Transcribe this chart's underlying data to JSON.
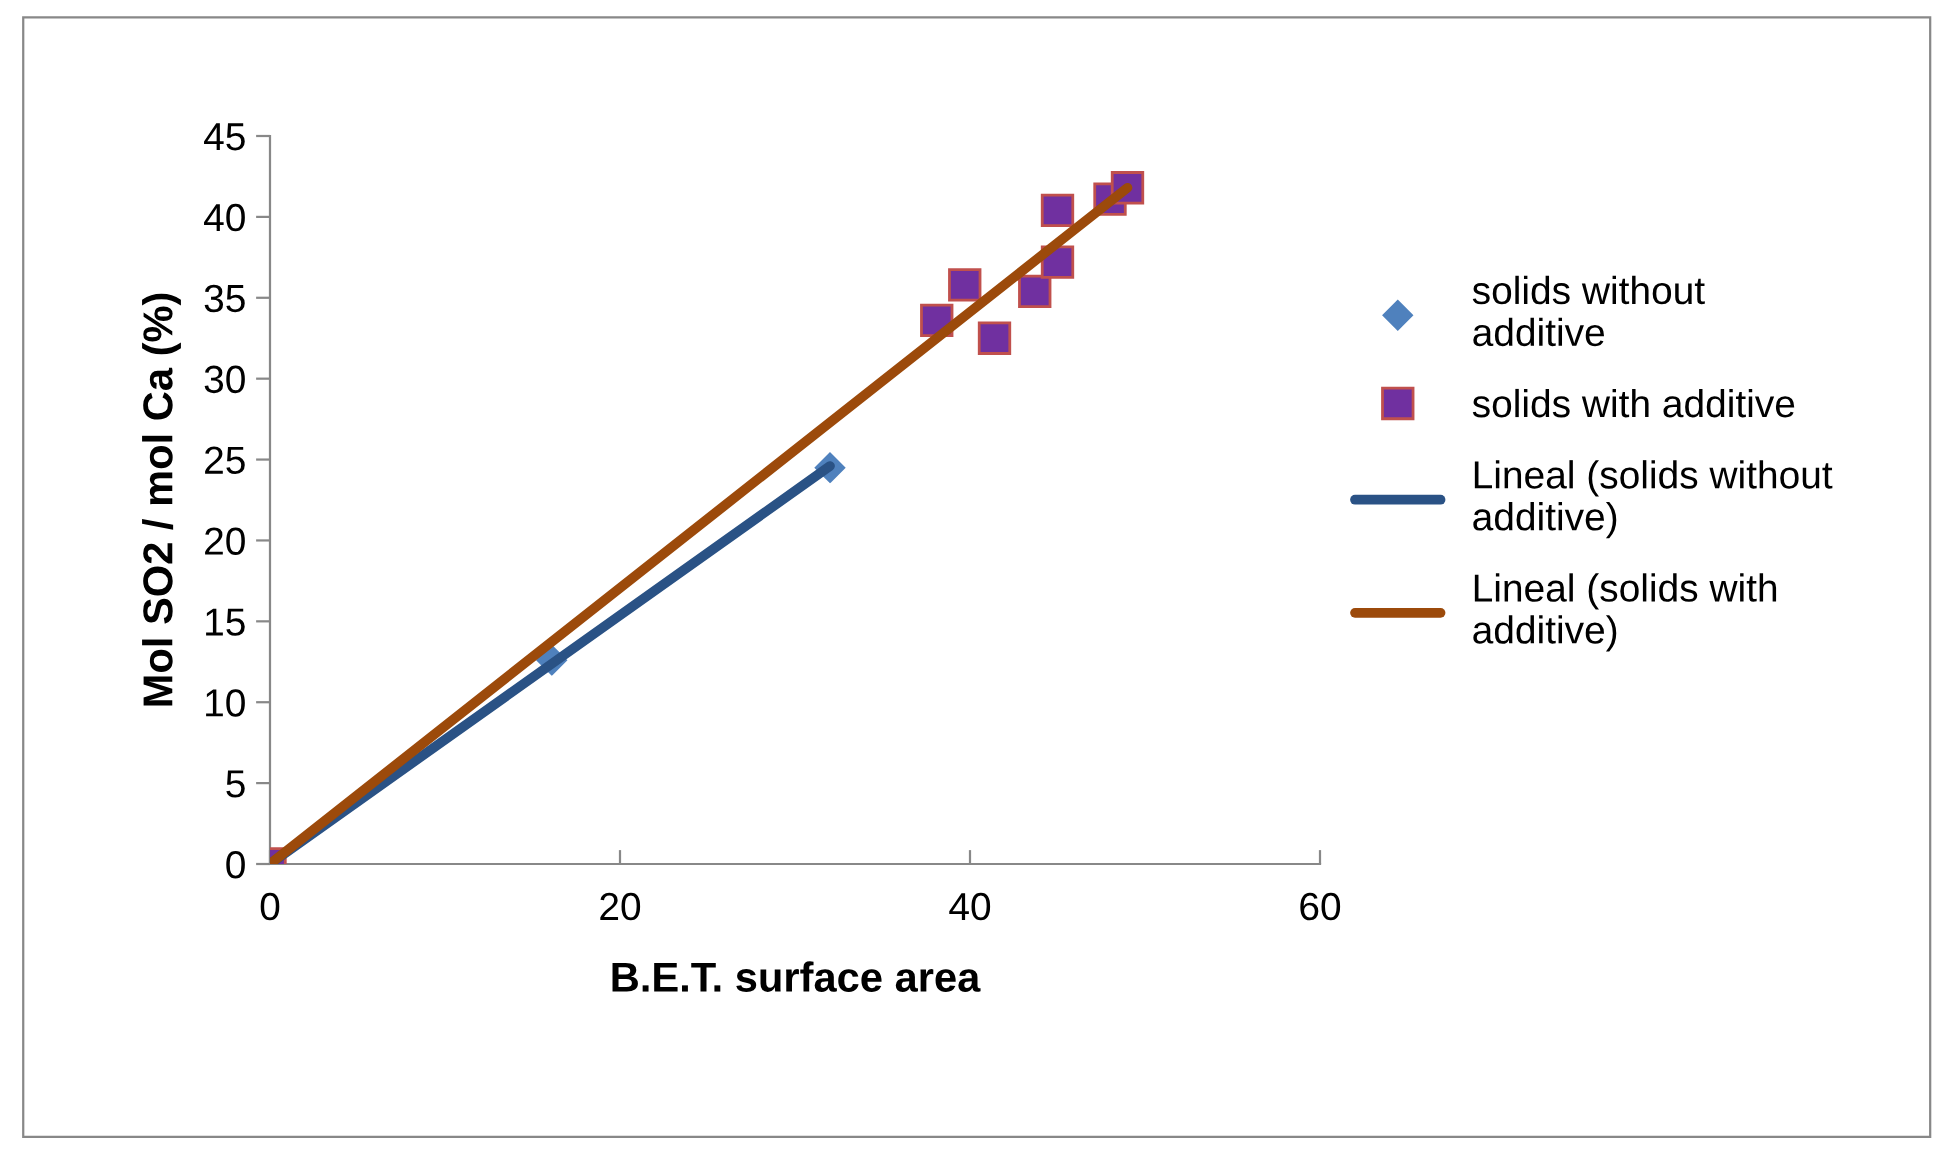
{
  "chart_data": {
    "type": "scatter",
    "xlabel": "B.E.T. surface area",
    "ylabel": "Mol SO2 / mol Ca (%)",
    "xlim": [
      0,
      60
    ],
    "xticks": [
      0,
      20,
      40,
      60
    ],
    "ylim": [
      0,
      45
    ],
    "yticks": [
      0,
      5,
      10,
      15,
      20,
      25,
      30,
      35,
      40,
      45
    ],
    "grid": false,
    "legend": "right",
    "series": [
      {
        "name": "solids without additive",
        "marker": "diamond",
        "color": "#4f81bd",
        "x": [
          16.1,
          32.0
        ],
        "values": [
          12.6,
          24.5
        ]
      },
      {
        "name": "solids with additive",
        "marker": "square",
        "color": "#7030a0",
        "x": [
          0,
          38.1,
          39.7,
          41.4,
          43.7,
          45.0,
          45.0,
          48.0,
          49.0
        ],
        "values": [
          0,
          33.6,
          35.8,
          32.5,
          35.4,
          37.2,
          40.4,
          41.1,
          41.8
        ]
      },
      {
        "name": "Lineal (solids without additive)",
        "type": "line",
        "marker": "none",
        "line_style": "solid",
        "color": "#2a5285",
        "x": [
          0,
          32.0
        ],
        "values": [
          0,
          24.6
        ]
      },
      {
        "name": "Lineal (solids with additive)",
        "type": "line",
        "marker": "none",
        "line_style": "solid",
        "color": "#9c4a0b",
        "x": [
          0,
          49.0
        ],
        "values": [
          0,
          41.8
        ]
      }
    ]
  }
}
